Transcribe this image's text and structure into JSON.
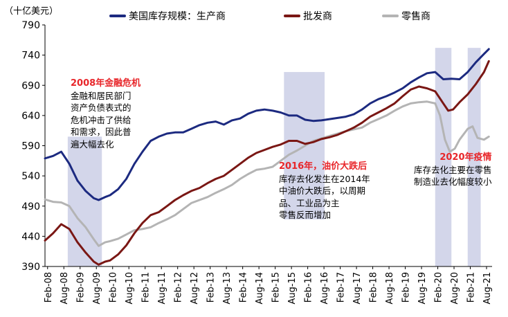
{
  "chart_data": {
    "type": "line",
    "unit_label": "（十亿美元）",
    "yticks": [
      390,
      440,
      490,
      540,
      590,
      640,
      690,
      740,
      790
    ],
    "ylim": [
      390,
      790
    ],
    "xlim": [
      2008.0,
      2021.75
    ],
    "xtick_labels": [
      "Feb-08",
      "Aug-08",
      "Feb-09",
      "Aug-09",
      "Feb-10",
      "Aug-10",
      "Feb-11",
      "Aug-11",
      "Feb-12",
      "Aug-12",
      "Feb-13",
      "Aug-13",
      "Feb-14",
      "Aug-14",
      "Feb-15",
      "Aug-15",
      "Feb-16",
      "Aug-16",
      "Feb-17",
      "Aug-17",
      "Feb-18",
      "Aug-18",
      "Feb-19",
      "Aug-19",
      "Feb-20",
      "Aug-20",
      "Feb-21",
      "Aug-21"
    ],
    "shaded_periods": [
      {
        "start": 2008.7,
        "end": 2009.75
      },
      {
        "start": 2015.35,
        "end": 2016.6
      },
      {
        "start": 2020.0,
        "end": 2020.5
      },
      {
        "start": 2021.0,
        "end": 2021.4
      }
    ],
    "series": [
      {
        "name": "美国库存规模：生产商",
        "color": "#1c2a80",
        "points": [
          [
            2008.0,
            569
          ],
          [
            2008.25,
            573
          ],
          [
            2008.5,
            580
          ],
          [
            2008.75,
            560
          ],
          [
            2009.0,
            532
          ],
          [
            2009.25,
            515
          ],
          [
            2009.5,
            503
          ],
          [
            2009.65,
            500
          ],
          [
            2009.85,
            505
          ],
          [
            2010.0,
            508
          ],
          [
            2010.25,
            518
          ],
          [
            2010.5,
            535
          ],
          [
            2010.75,
            560
          ],
          [
            2011.0,
            580
          ],
          [
            2011.25,
            598
          ],
          [
            2011.5,
            605
          ],
          [
            2011.75,
            610
          ],
          [
            2012.0,
            612
          ],
          [
            2012.25,
            612
          ],
          [
            2012.5,
            618
          ],
          [
            2012.75,
            624
          ],
          [
            2013.0,
            628
          ],
          [
            2013.25,
            630
          ],
          [
            2013.5,
            625
          ],
          [
            2013.75,
            632
          ],
          [
            2014.0,
            635
          ],
          [
            2014.25,
            643
          ],
          [
            2014.5,
            648
          ],
          [
            2014.75,
            650
          ],
          [
            2015.0,
            648
          ],
          [
            2015.25,
            645
          ],
          [
            2015.5,
            640
          ],
          [
            2015.75,
            640
          ],
          [
            2016.0,
            633
          ],
          [
            2016.25,
            631
          ],
          [
            2016.5,
            632
          ],
          [
            2016.75,
            634
          ],
          [
            2017.0,
            636
          ],
          [
            2017.25,
            638
          ],
          [
            2017.5,
            642
          ],
          [
            2017.75,
            650
          ],
          [
            2018.0,
            660
          ],
          [
            2018.25,
            667
          ],
          [
            2018.5,
            672
          ],
          [
            2018.75,
            678
          ],
          [
            2019.0,
            685
          ],
          [
            2019.25,
            695
          ],
          [
            2019.5,
            703
          ],
          [
            2019.75,
            710
          ],
          [
            2020.0,
            712
          ],
          [
            2020.25,
            700
          ],
          [
            2020.5,
            701
          ],
          [
            2020.75,
            700
          ],
          [
            2021.0,
            712
          ],
          [
            2021.25,
            728
          ],
          [
            2021.5,
            742
          ],
          [
            2021.65,
            750
          ]
        ]
      },
      {
        "name": "批发商",
        "color": "#7a1714",
        "points": [
          [
            2008.0,
            433
          ],
          [
            2008.25,
            445
          ],
          [
            2008.5,
            460
          ],
          [
            2008.75,
            452
          ],
          [
            2009.0,
            430
          ],
          [
            2009.25,
            413
          ],
          [
            2009.5,
            398
          ],
          [
            2009.65,
            393
          ],
          [
            2009.85,
            398
          ],
          [
            2010.0,
            400
          ],
          [
            2010.25,
            410
          ],
          [
            2010.5,
            425
          ],
          [
            2010.75,
            445
          ],
          [
            2011.0,
            462
          ],
          [
            2011.25,
            475
          ],
          [
            2011.5,
            480
          ],
          [
            2011.75,
            490
          ],
          [
            2012.0,
            500
          ],
          [
            2012.25,
            508
          ],
          [
            2012.5,
            515
          ],
          [
            2012.75,
            520
          ],
          [
            2013.0,
            528
          ],
          [
            2013.25,
            535
          ],
          [
            2013.5,
            540
          ],
          [
            2013.75,
            550
          ],
          [
            2014.0,
            560
          ],
          [
            2014.25,
            570
          ],
          [
            2014.5,
            578
          ],
          [
            2014.75,
            583
          ],
          [
            2015.0,
            588
          ],
          [
            2015.25,
            592
          ],
          [
            2015.5,
            598
          ],
          [
            2015.75,
            598
          ],
          [
            2016.0,
            593
          ],
          [
            2016.25,
            596
          ],
          [
            2016.5,
            601
          ],
          [
            2016.75,
            604
          ],
          [
            2017.0,
            608
          ],
          [
            2017.25,
            614
          ],
          [
            2017.5,
            620
          ],
          [
            2017.75,
            628
          ],
          [
            2018.0,
            638
          ],
          [
            2018.25,
            645
          ],
          [
            2018.5,
            652
          ],
          [
            2018.75,
            660
          ],
          [
            2019.0,
            672
          ],
          [
            2019.25,
            683
          ],
          [
            2019.5,
            688
          ],
          [
            2019.75,
            685
          ],
          [
            2020.0,
            680
          ],
          [
            2020.25,
            660
          ],
          [
            2020.4,
            648
          ],
          [
            2020.55,
            650
          ],
          [
            2020.75,
            662
          ],
          [
            2021.0,
            675
          ],
          [
            2021.25,
            692
          ],
          [
            2021.5,
            712
          ],
          [
            2021.65,
            730
          ]
        ]
      },
      {
        "name": "零售商",
        "color": "#b4b4b4",
        "points": [
          [
            2008.0,
            501
          ],
          [
            2008.25,
            497
          ],
          [
            2008.5,
            496
          ],
          [
            2008.75,
            490
          ],
          [
            2009.0,
            470
          ],
          [
            2009.25,
            455
          ],
          [
            2009.5,
            435
          ],
          [
            2009.65,
            424
          ],
          [
            2009.85,
            430
          ],
          [
            2010.0,
            432
          ],
          [
            2010.25,
            436
          ],
          [
            2010.5,
            443
          ],
          [
            2010.75,
            450
          ],
          [
            2011.0,
            452
          ],
          [
            2011.25,
            455
          ],
          [
            2011.5,
            462
          ],
          [
            2011.75,
            468
          ],
          [
            2012.0,
            475
          ],
          [
            2012.25,
            485
          ],
          [
            2012.5,
            495
          ],
          [
            2012.75,
            500
          ],
          [
            2013.0,
            505
          ],
          [
            2013.25,
            512
          ],
          [
            2013.5,
            518
          ],
          [
            2013.75,
            525
          ],
          [
            2014.0,
            535
          ],
          [
            2014.25,
            543
          ],
          [
            2014.5,
            550
          ],
          [
            2014.75,
            552
          ],
          [
            2015.0,
            555
          ],
          [
            2015.25,
            565
          ],
          [
            2015.5,
            575
          ],
          [
            2015.75,
            582
          ],
          [
            2016.0,
            590
          ],
          [
            2016.25,
            598
          ],
          [
            2016.5,
            602
          ],
          [
            2016.75,
            606
          ],
          [
            2017.0,
            610
          ],
          [
            2017.25,
            614
          ],
          [
            2017.5,
            617
          ],
          [
            2017.75,
            620
          ],
          [
            2018.0,
            628
          ],
          [
            2018.25,
            634
          ],
          [
            2018.5,
            640
          ],
          [
            2018.75,
            648
          ],
          [
            2019.0,
            655
          ],
          [
            2019.25,
            660
          ],
          [
            2019.5,
            662
          ],
          [
            2019.75,
            663
          ],
          [
            2020.0,
            660
          ],
          [
            2020.15,
            640
          ],
          [
            2020.3,
            600
          ],
          [
            2020.45,
            580
          ],
          [
            2020.6,
            585
          ],
          [
            2020.75,
            600
          ],
          [
            2021.0,
            618
          ],
          [
            2021.15,
            622
          ],
          [
            2021.3,
            603
          ],
          [
            2021.5,
            600
          ],
          [
            2021.65,
            605
          ]
        ]
      }
    ],
    "annotations": [
      {
        "id": "gfc",
        "title": "2008年金融危机",
        "lines": [
          "金融和居民部门",
          "资产负债表式的",
          "危机冲击了供给",
          "和需求，因此普",
          "遍大幅去化"
        ]
      },
      {
        "id": "oil",
        "title": "2016年，油价大跌后",
        "lines": [
          "库存去化发生在2014年",
          "中油价大跌后，以周期",
          "品、工业品为主",
          "零售反而增加"
        ]
      },
      {
        "id": "covid",
        "title": "2020年疫情",
        "lines": [
          "库存去化主要在零售",
          "制造业去化幅度较小"
        ]
      }
    ]
  }
}
